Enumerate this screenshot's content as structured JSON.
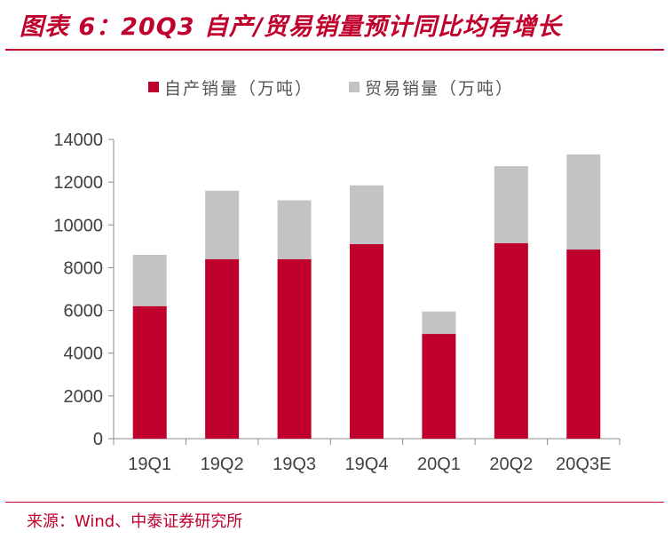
{
  "title": "图表 6：20Q3 自产/贸易销量预计同比均有增长",
  "source": "来源：Wind、中泰证券研究所",
  "chart_data": {
    "type": "bar",
    "stacked": true,
    "title": "图表 6：20Q3 自产/贸易销量预计同比均有增长",
    "xlabel": "",
    "ylabel": "",
    "categories": [
      "19Q1",
      "19Q2",
      "19Q3",
      "19Q4",
      "20Q1",
      "20Q2",
      "20Q3E"
    ],
    "series": [
      {
        "name": "自产销量（万吨）",
        "color": "#c0002c",
        "values": [
          6200,
          8400,
          8400,
          9100,
          4900,
          9150,
          8850
        ]
      },
      {
        "name": "贸易销量（万吨）",
        "color": "#c3c3c5",
        "values": [
          2400,
          3200,
          2750,
          2750,
          1050,
          3600,
          4450
        ]
      }
    ],
    "yticks": [
      0,
      2000,
      4000,
      6000,
      8000,
      10000,
      12000,
      14000
    ],
    "ylim": [
      0,
      14000
    ],
    "legend": "top",
    "grid": false
  }
}
